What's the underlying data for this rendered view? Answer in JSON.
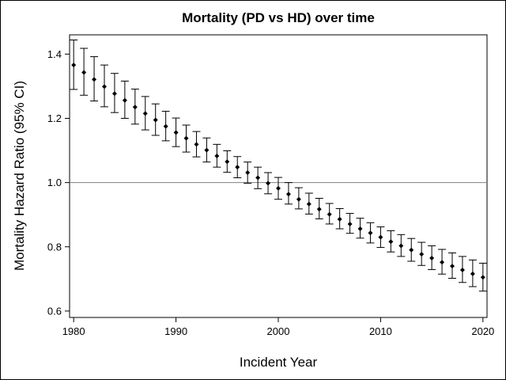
{
  "chart_data": {
    "type": "scatter",
    "title": "Mortality (PD vs HD) over time",
    "xlabel": "Incident Year",
    "ylabel": "Mortality Hazard Ratio (95% CI)",
    "xlim": [
      1979.6,
      2020.4
    ],
    "ylim": [
      0.58,
      1.46
    ],
    "xticks": [
      1980,
      1990,
      2000,
      2010,
      2020
    ],
    "yticks": [
      0.6,
      0.8,
      1.0,
      1.2,
      1.4
    ],
    "xtick_labels": [
      "1980",
      "1990",
      "2000",
      "2010",
      "2020"
    ],
    "ytick_labels": [
      "0.6",
      "0.8",
      "1.0",
      "1.2",
      "1.4"
    ],
    "reference_line_y": 1.0,
    "grid": false,
    "colors": {
      "points": "#000000",
      "reference_line": "#808080",
      "frame": "#000000"
    },
    "series": [
      {
        "x": [
          1980,
          1981,
          1982,
          1983,
          1984,
          1985,
          1986,
          1987,
          1988,
          1989,
          1990,
          1991,
          1992,
          1993,
          1994,
          1995,
          1996,
          1997,
          1998,
          1999,
          2000,
          2001,
          2002,
          2003,
          2004,
          2005,
          2006,
          2007,
          2008,
          2009,
          2010,
          2011,
          2012,
          2013,
          2014,
          2015,
          2016,
          2017,
          2018,
          2019,
          2020
        ],
        "y": [
          1.366,
          1.343,
          1.321,
          1.299,
          1.277,
          1.256,
          1.235,
          1.215,
          1.195,
          1.175,
          1.156,
          1.138,
          1.119,
          1.101,
          1.083,
          1.065,
          1.048,
          1.031,
          1.015,
          0.998,
          0.982,
          0.964,
          0.948,
          0.933,
          0.917,
          0.901,
          0.886,
          0.871,
          0.856,
          0.843,
          0.83,
          0.816,
          0.803,
          0.79,
          0.777,
          0.765,
          0.752,
          0.74,
          0.728,
          0.716,
          0.705
        ],
        "lower": [
          1.29,
          1.272,
          1.254,
          1.236,
          1.218,
          1.2,
          1.182,
          1.164,
          1.147,
          1.13,
          1.112,
          1.095,
          1.08,
          1.064,
          1.048,
          1.032,
          1.015,
          0.998,
          0.981,
          0.965,
          0.948,
          0.933,
          0.918,
          0.902,
          0.887,
          0.871,
          0.856,
          0.842,
          0.827,
          0.812,
          0.798,
          0.784,
          0.77,
          0.755,
          0.742,
          0.729,
          0.715,
          0.702,
          0.689,
          0.676,
          0.662
        ],
        "upper": [
          1.444,
          1.418,
          1.392,
          1.366,
          1.34,
          1.316,
          1.291,
          1.268,
          1.245,
          1.222,
          1.201,
          1.179,
          1.159,
          1.139,
          1.119,
          1.099,
          1.081,
          1.064,
          1.048,
          1.031,
          1.016,
          1.0,
          0.984,
          0.967,
          0.951,
          0.935,
          0.919,
          0.904,
          0.889,
          0.875,
          0.862,
          0.85,
          0.838,
          0.826,
          0.814,
          0.803,
          0.792,
          0.781,
          0.77,
          0.759,
          0.749
        ]
      }
    ]
  }
}
